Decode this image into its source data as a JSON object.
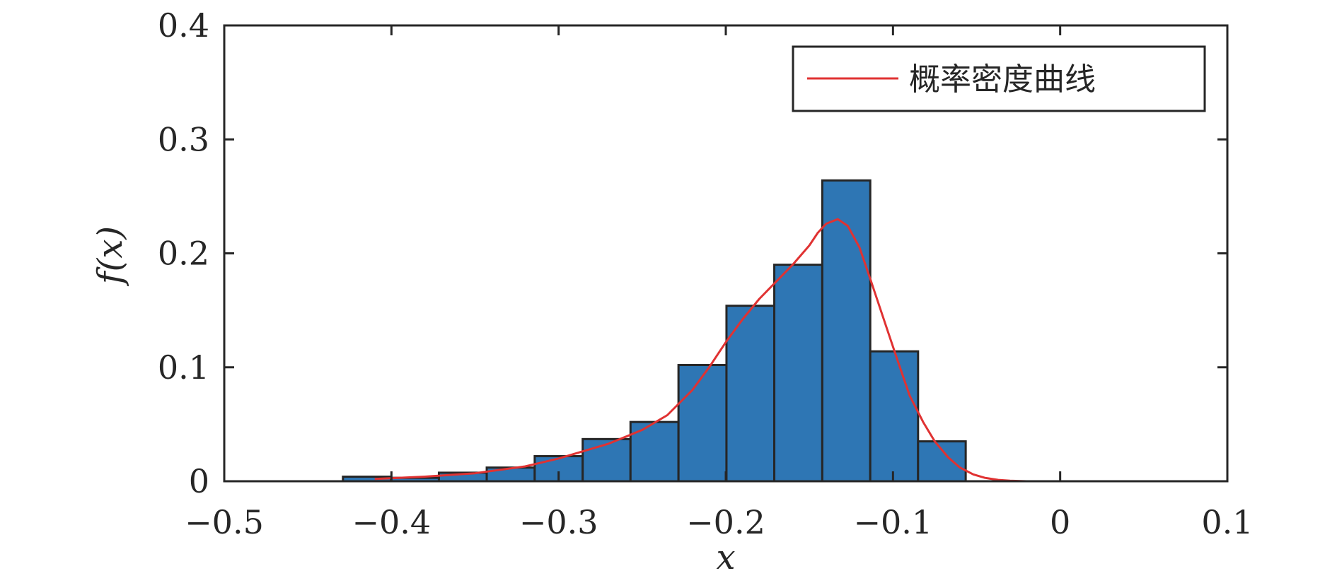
{
  "chart_data": {
    "type": "bar",
    "subtype": "histogram-with-density-curve",
    "xlabel": "x",
    "ylabel": "f(x)",
    "xlim": [
      -0.5,
      0.1
    ],
    "ylim": [
      0,
      0.4
    ],
    "xticks": [
      -0.5,
      -0.4,
      -0.3,
      -0.2,
      -0.1,
      0,
      0.1
    ],
    "xtick_labels": [
      "−0.5",
      "−0.4",
      "−0.3",
      "−0.2",
      "−0.1",
      "0",
      "0.1"
    ],
    "yticks": [
      0,
      0.1,
      0.2,
      0.3,
      0.4
    ],
    "ytick_labels": [
      "0",
      "0.1",
      "0.2",
      "0.3",
      "0.4"
    ],
    "grid": false,
    "legend": {
      "placement": "top-right",
      "entries": [
        "概率密度曲线"
      ]
    },
    "histogram": {
      "bin_edges": [
        -0.429,
        -0.4003,
        -0.3716,
        -0.343,
        -0.3143,
        -0.2856,
        -0.257,
        -0.2283,
        -0.1996,
        -0.171,
        -0.1423,
        -0.1136,
        -0.085,
        -0.0565
      ],
      "values": [
        0.004,
        0.003,
        0.0075,
        0.012,
        0.022,
        0.037,
        0.052,
        0.102,
        0.154,
        0.19,
        0.264,
        0.114,
        0.035
      ],
      "color": "#2e76b4",
      "edge_color": "#262626"
    },
    "series": [
      {
        "name": "概率密度曲线",
        "color": "#e03232",
        "x": [
          -0.41,
          -0.38,
          -0.35,
          -0.32,
          -0.3,
          -0.27,
          -0.25,
          -0.235,
          -0.22,
          -0.21,
          -0.2,
          -0.19,
          -0.18,
          -0.17,
          -0.16,
          -0.15,
          -0.145,
          -0.14,
          -0.133,
          -0.127,
          -0.12,
          -0.113,
          -0.105,
          -0.097,
          -0.09,
          -0.082,
          -0.075,
          -0.067,
          -0.06,
          -0.052,
          -0.045,
          -0.037,
          -0.03,
          -0.02
        ],
        "y": [
          0.002,
          0.004,
          0.007,
          0.013,
          0.02,
          0.033,
          0.045,
          0.058,
          0.08,
          0.1,
          0.122,
          0.142,
          0.16,
          0.175,
          0.19,
          0.207,
          0.218,
          0.226,
          0.23,
          0.224,
          0.205,
          0.175,
          0.14,
          0.105,
          0.075,
          0.052,
          0.035,
          0.021,
          0.012,
          0.006,
          0.003,
          0.0012,
          0.0005,
          0
        ]
      }
    ]
  }
}
